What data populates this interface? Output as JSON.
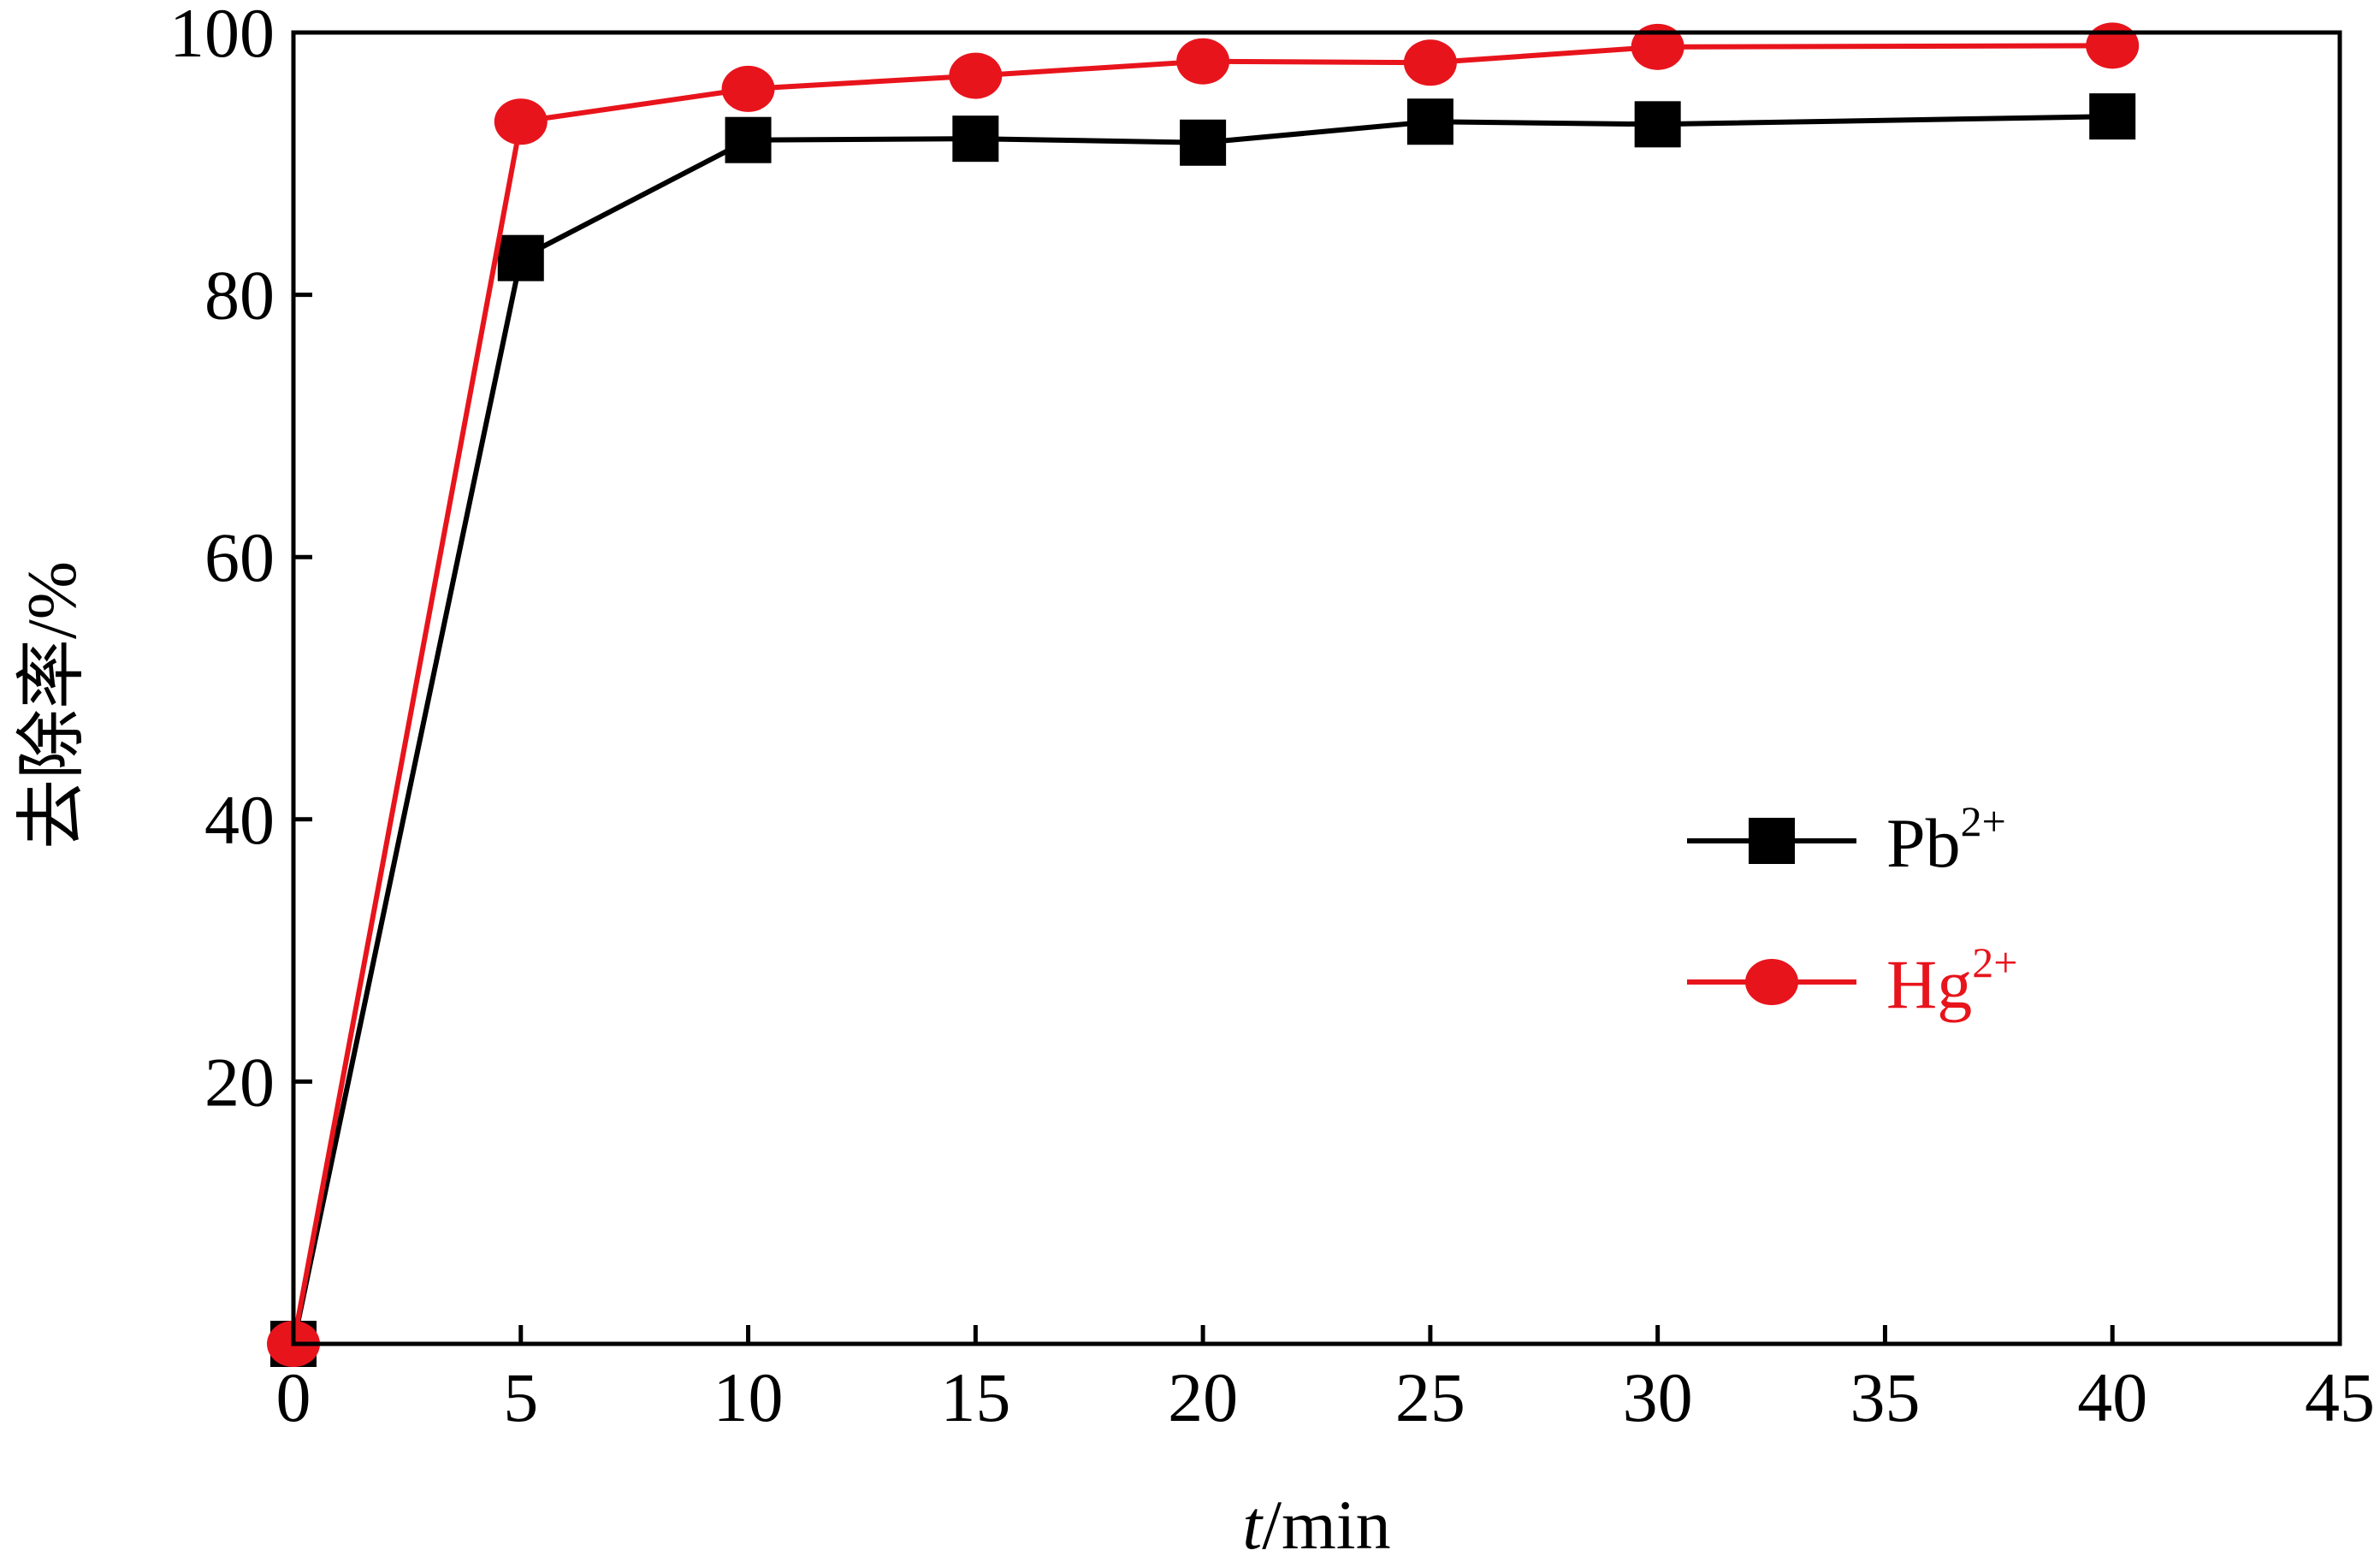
{
  "chart_data": {
    "type": "line",
    "title": "",
    "xlabel_italic": "t",
    "xlabel_rest": "/min",
    "ylabel": "去除率/%",
    "xlim": [
      0,
      45
    ],
    "ylim": [
      0,
      100
    ],
    "x_ticks": [
      0,
      5,
      10,
      15,
      20,
      25,
      30,
      35,
      40,
      45
    ],
    "y_ticks": [
      20,
      40,
      60,
      80,
      100
    ],
    "grid": false,
    "legend_position": "right-middle",
    "series": [
      {
        "name_base": "Pb",
        "name_sup": "2+",
        "color": "#000000",
        "marker": "square",
        "x": [
          0,
          5,
          10,
          15,
          20,
          25,
          30,
          40
        ],
        "y": [
          0,
          82.8,
          91.8,
          91.9,
          91.6,
          93.2,
          93.0,
          93.6
        ]
      },
      {
        "name_base": "Hg",
        "name_sup": "2+",
        "color": "#e8141c",
        "marker": "circle",
        "x": [
          0,
          5,
          10,
          15,
          20,
          25,
          30,
          40
        ],
        "y": [
          0,
          93.2,
          95.7,
          96.7,
          97.8,
          97.7,
          98.9,
          99.0
        ]
      }
    ]
  }
}
